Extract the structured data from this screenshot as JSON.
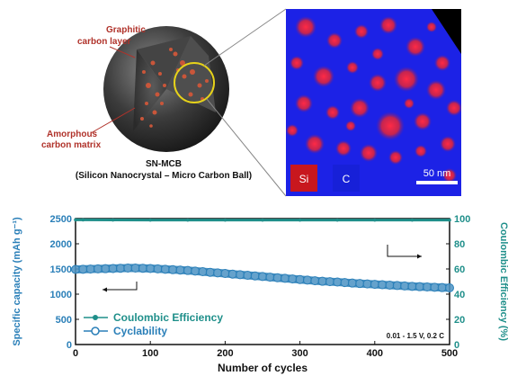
{
  "illustration": {
    "label_graphitic": "Graphitic carbon layer",
    "label_graphitic_line1": "Graphitic",
    "label_graphitic_line2": "carbon layer",
    "label_amorphous_line1": "Amorphous",
    "label_amorphous_line2": "carbon matrix",
    "title": "SN-MCB",
    "subtitle": "(Silicon Nanocrystal – Micro Carbon Ball)"
  },
  "eds_map": {
    "legend_si": "Si",
    "legend_c": "C",
    "scale_bar": "50 nm",
    "colors": {
      "si": "#e8223a",
      "c": "#1c22e6",
      "si_box": "#c8171e",
      "c_box": "#1720d8"
    }
  },
  "chart_data": {
    "type": "line",
    "xlabel": "Number of cycles",
    "ylabel_left": "Specific capacity (mAh g⁻¹)",
    "ylabel_right": "Coulombic Efficiency (%)",
    "xlim": [
      0,
      500
    ],
    "ylim_left": [
      0,
      2500
    ],
    "ylim_right": [
      0,
      100
    ],
    "x_ticks": [
      0,
      100,
      200,
      300,
      400,
      500
    ],
    "y_left_ticks": [
      0,
      500,
      1000,
      1500,
      2000,
      2500
    ],
    "y_right_ticks": [
      0,
      20,
      40,
      60,
      80,
      100
    ],
    "annotation": "0.01 - 1.5 V, 0.2 C",
    "series": [
      {
        "name": "Coulombic Efficiency",
        "axis": "right",
        "color": "#1f8f8a",
        "x": [
          0,
          10,
          50,
          100,
          150,
          200,
          250,
          300,
          350,
          400,
          450,
          500
        ],
        "y": [
          99,
          99,
          98.9,
          98.8,
          98.8,
          98.8,
          98.8,
          98.8,
          98.8,
          98.8,
          98.8,
          98.8
        ]
      },
      {
        "name": "Cyclability",
        "axis": "left",
        "color": "#2a7fb8",
        "x": [
          0,
          25,
          50,
          75,
          100,
          125,
          150,
          175,
          200,
          225,
          250,
          275,
          300,
          325,
          350,
          375,
          400,
          425,
          450,
          475,
          500
        ],
        "y": [
          1490,
          1500,
          1510,
          1520,
          1510,
          1490,
          1470,
          1440,
          1410,
          1380,
          1350,
          1320,
          1290,
          1260,
          1240,
          1215,
          1195,
          1175,
          1155,
          1140,
          1125
        ]
      }
    ]
  }
}
